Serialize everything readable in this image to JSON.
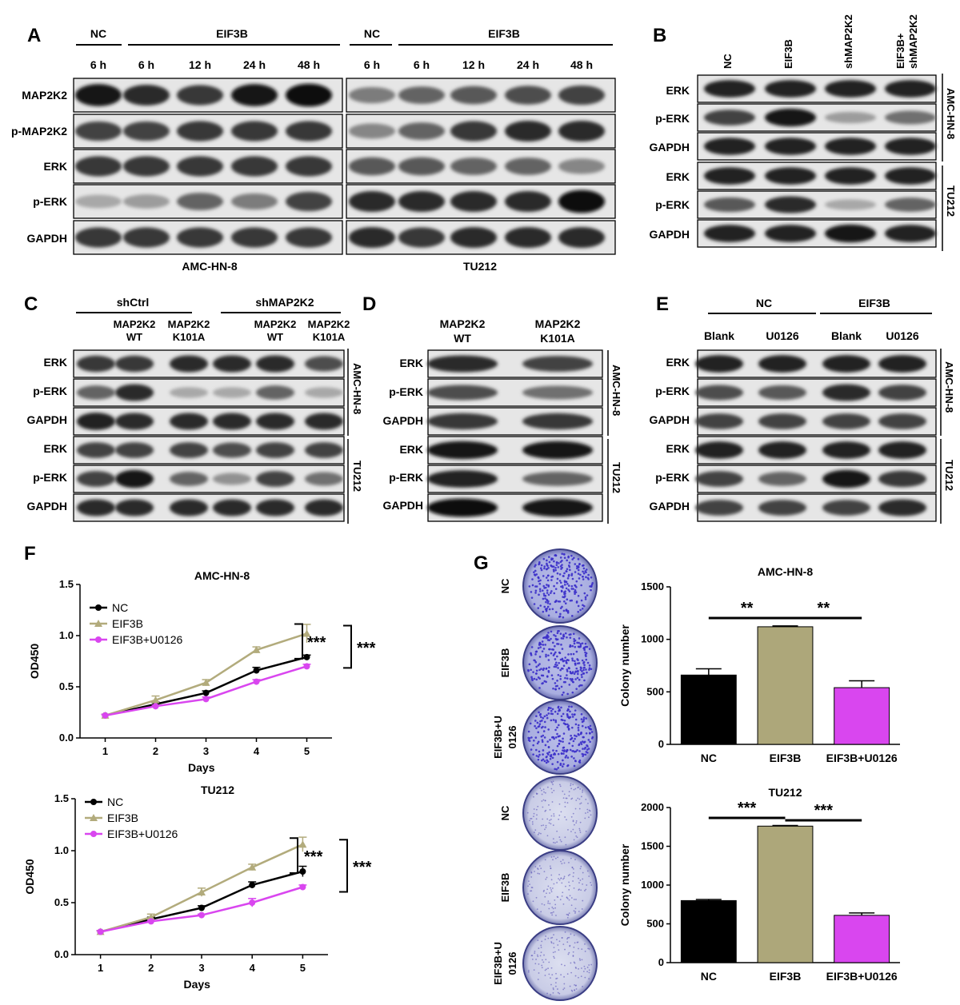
{
  "panels": {
    "A": {
      "letter": "A",
      "left": {
        "nc_label": "NC",
        "group_label": "EIF3B",
        "times": [
          "6 h",
          "6 h",
          "12 h",
          "24 h",
          "48 h"
        ],
        "rows": [
          "MAP2K2",
          "p-MAP2K2",
          "ERK",
          "p-ERK",
          "GAPDH"
        ],
        "cell": "AMC-HN-8"
      },
      "right": {
        "nc_label": "NC",
        "group_label": "EIF3B",
        "times": [
          "6 h",
          "6 h",
          "12 h",
          "24 h",
          "48 h"
        ],
        "cell": "TU212"
      },
      "intensity_left": [
        [
          0.95,
          0.85,
          0.8,
          0.95,
          1.0
        ],
        [
          0.75,
          0.75,
          0.8,
          0.8,
          0.8
        ],
        [
          0.8,
          0.8,
          0.8,
          0.8,
          0.8
        ],
        [
          0.3,
          0.35,
          0.6,
          0.5,
          0.75
        ],
        [
          0.8,
          0.8,
          0.8,
          0.8,
          0.8
        ]
      ],
      "intensity_right": [
        [
          0.5,
          0.6,
          0.65,
          0.7,
          0.75
        ],
        [
          0.45,
          0.6,
          0.8,
          0.85,
          0.85
        ],
        [
          0.65,
          0.65,
          0.6,
          0.6,
          0.45
        ],
        [
          0.85,
          0.85,
          0.85,
          0.85,
          1.0
        ],
        [
          0.85,
          0.8,
          0.85,
          0.85,
          0.85
        ]
      ]
    },
    "B": {
      "letter": "B",
      "columns": [
        "NC",
        "EIF3B",
        "shMAP2K2",
        "EIF3B+",
        "shMAP2K2"
      ],
      "rows": [
        "ERK",
        "p-ERK",
        "GAPDH",
        "ERK",
        "p-ERK",
        "GAPDH"
      ],
      "cells": [
        "AMC-HN-8",
        "TU212"
      ],
      "intensity": [
        [
          0.9,
          0.9,
          0.9,
          0.9
        ],
        [
          0.75,
          0.95,
          0.35,
          0.55
        ],
        [
          0.9,
          0.9,
          0.9,
          0.9
        ],
        [
          0.9,
          0.9,
          0.9,
          0.9
        ],
        [
          0.65,
          0.85,
          0.3,
          0.6
        ],
        [
          0.9,
          0.9,
          0.95,
          0.9
        ]
      ]
    },
    "C": {
      "letter": "C",
      "group1": "shCtrl",
      "group2": "shMAP2K2",
      "col_labels": [
        {
          "l1": "MAP2K2",
          "l2": "WT"
        },
        {
          "l1": "MAP2K2",
          "l2": "K101A"
        },
        {
          "l1": "MAP2K2",
          "l2": "WT"
        },
        {
          "l1": "MAP2K2",
          "l2": "K101A"
        }
      ],
      "rows": [
        "ERK",
        "p-ERK",
        "GAPDH",
        "ERK",
        "p-ERK",
        "GAPDH"
      ],
      "cells": [
        "AMC-HN-8",
        "TU212"
      ],
      "intensity": [
        [
          0.8,
          0.8,
          0.85,
          0.85,
          0.85,
          0.7
        ],
        [
          0.6,
          0.85,
          0.3,
          0.3,
          0.6,
          0.3
        ],
        [
          0.9,
          0.85,
          0.85,
          0.85,
          0.85,
          0.85
        ],
        [
          0.75,
          0.75,
          0.75,
          0.7,
          0.75,
          0.75
        ],
        [
          0.75,
          0.95,
          0.6,
          0.4,
          0.75,
          0.55
        ],
        [
          0.85,
          0.85,
          0.85,
          0.85,
          0.85,
          0.85
        ]
      ]
    },
    "D": {
      "letter": "D",
      "col_labels": [
        {
          "l1": "MAP2K2",
          "l2": "WT"
        },
        {
          "l1": "MAP2K2",
          "l2": "K101A"
        }
      ],
      "rows": [
        "ERK",
        "p-ERK",
        "GAPDH",
        "ERK",
        "p-ERK",
        "GAPDH"
      ],
      "cells": [
        "AMC-HN-8",
        "TU212"
      ],
      "intensity": [
        [
          0.85,
          0.75
        ],
        [
          0.7,
          0.55
        ],
        [
          0.8,
          0.8
        ],
        [
          0.95,
          0.95
        ],
        [
          0.9,
          0.6
        ],
        [
          1.0,
          0.95
        ]
      ]
    },
    "E": {
      "letter": "E",
      "group1": "NC",
      "group2": "EIF3B",
      "cols": [
        "Blank",
        "U0126",
        "Blank",
        "U0126"
      ],
      "rows": [
        "ERK",
        "p-ERK",
        "GAPDH",
        "ERK",
        "p-ERK",
        "GAPDH"
      ],
      "cells": [
        "AMC-HN-8",
        "TU212"
      ],
      "intensity": [
        [
          0.9,
          0.9,
          0.9,
          0.9
        ],
        [
          0.7,
          0.65,
          0.85,
          0.75
        ],
        [
          0.75,
          0.75,
          0.75,
          0.75
        ],
        [
          0.9,
          0.9,
          0.9,
          0.9
        ],
        [
          0.75,
          0.6,
          0.95,
          0.8
        ],
        [
          0.75,
          0.75,
          0.75,
          0.85
        ]
      ]
    },
    "F": {
      "letter": "F",
      "sig1": "***",
      "sig2": "***"
    },
    "G": {
      "letter": "G",
      "plate_labels": [
        "NC",
        "EIF3B",
        "EIF3B+U 0126",
        "NC",
        "EIF3B",
        "EIF3B+U 0126"
      ],
      "plate_labels_lines": [
        [
          "NC"
        ],
        [
          "EIF3B"
        ],
        [
          "EIF3B+U",
          "0126"
        ],
        [
          "NC"
        ],
        [
          "EIF3B"
        ],
        [
          "EIF3B+U",
          "0126"
        ]
      ]
    }
  },
  "chart_data": [
    {
      "type": "line",
      "id": "F-top",
      "title": "AMC-HN-8",
      "xlabel": "Days",
      "ylabel": "OD450",
      "x": [
        1,
        2,
        3,
        4,
        5
      ],
      "xlim": [
        0.5,
        5.5
      ],
      "ylim": [
        0,
        1.5
      ],
      "yticks": [
        0.0,
        0.5,
        1.0,
        1.5
      ],
      "ytick_labels": [
        "0.0",
        "0.5",
        "1.0",
        "1.5"
      ],
      "legend": "top-left",
      "series": [
        {
          "name": "NC",
          "color": "#000000",
          "marker": "circle",
          "values": [
            0.22,
            0.33,
            0.44,
            0.66,
            0.79
          ],
          "err": [
            0.01,
            0.02,
            0.02,
            0.03,
            0.02
          ]
        },
        {
          "name": "EIF3B",
          "color": "#b2ab7c",
          "marker": "triangle",
          "values": [
            0.22,
            0.37,
            0.54,
            0.86,
            1.02
          ],
          "err": [
            0.01,
            0.04,
            0.03,
            0.03,
            0.09
          ]
        },
        {
          "name": "EIF3B+U0126",
          "color": "#d946ef",
          "marker": "circle",
          "values": [
            0.22,
            0.31,
            0.38,
            0.55,
            0.7
          ],
          "err": [
            0.01,
            0.01,
            0.02,
            0.02,
            0.02
          ]
        }
      ]
    },
    {
      "type": "line",
      "id": "F-bottom",
      "title": "TU212",
      "xlabel": "Days",
      "ylabel": "OD450",
      "x": [
        1,
        2,
        3,
        4,
        5
      ],
      "xlim": [
        0.5,
        5.5
      ],
      "ylim": [
        0,
        1.5
      ],
      "yticks": [
        0.0,
        0.5,
        1.0,
        1.5
      ],
      "ytick_labels": [
        "0.0",
        "0.5",
        "1.0",
        "1.5"
      ],
      "legend": "top-left",
      "series": [
        {
          "name": "NC",
          "color": "#000000",
          "marker": "circle",
          "values": [
            0.22,
            0.34,
            0.45,
            0.67,
            0.8
          ],
          "err": [
            0.01,
            0.02,
            0.02,
            0.03,
            0.05
          ]
        },
        {
          "name": "EIF3B",
          "color": "#b2ab7c",
          "marker": "triangle",
          "values": [
            0.22,
            0.36,
            0.6,
            0.84,
            1.06
          ],
          "err": [
            0.01,
            0.03,
            0.04,
            0.03,
            0.07
          ]
        },
        {
          "name": "EIF3B+U0126",
          "color": "#d946ef",
          "marker": "circle",
          "values": [
            0.22,
            0.32,
            0.38,
            0.5,
            0.65
          ],
          "err": [
            0.01,
            0.01,
            0.01,
            0.04,
            0.02
          ]
        }
      ]
    },
    {
      "type": "bar",
      "id": "G-top",
      "title": "AMC-HN-8",
      "ylabel": "Colony number",
      "categories": [
        "NC",
        "EIF3B",
        "EIF3B+U0126"
      ],
      "values": [
        660,
        1120,
        540
      ],
      "errors": [
        60,
        8,
        65
      ],
      "colors": [
        "#000000",
        "#ada77a",
        "#d946ef"
      ],
      "ylim": [
        0,
        1500
      ],
      "yticks": [
        0,
        500,
        1000,
        1500
      ],
      "significance": [
        {
          "from": 0,
          "to": 1,
          "label": "**"
        },
        {
          "from": 1,
          "to": 2,
          "label": "**"
        }
      ]
    },
    {
      "type": "bar",
      "id": "G-bottom",
      "title": "TU212",
      "ylabel": "Colony number",
      "categories": [
        "NC",
        "EIF3B",
        "EIF3B+U0126"
      ],
      "values": [
        800,
        1760,
        610
      ],
      "errors": [
        15,
        8,
        30
      ],
      "colors": [
        "#000000",
        "#ada77a",
        "#d946ef"
      ],
      "ylim": [
        0,
        2000
      ],
      "yticks": [
        0,
        500,
        1000,
        1500,
        2000
      ],
      "significance": [
        {
          "from": 0,
          "to": 1,
          "label": "***"
        },
        {
          "from": 1,
          "to": 2,
          "label": "***"
        }
      ]
    }
  ]
}
